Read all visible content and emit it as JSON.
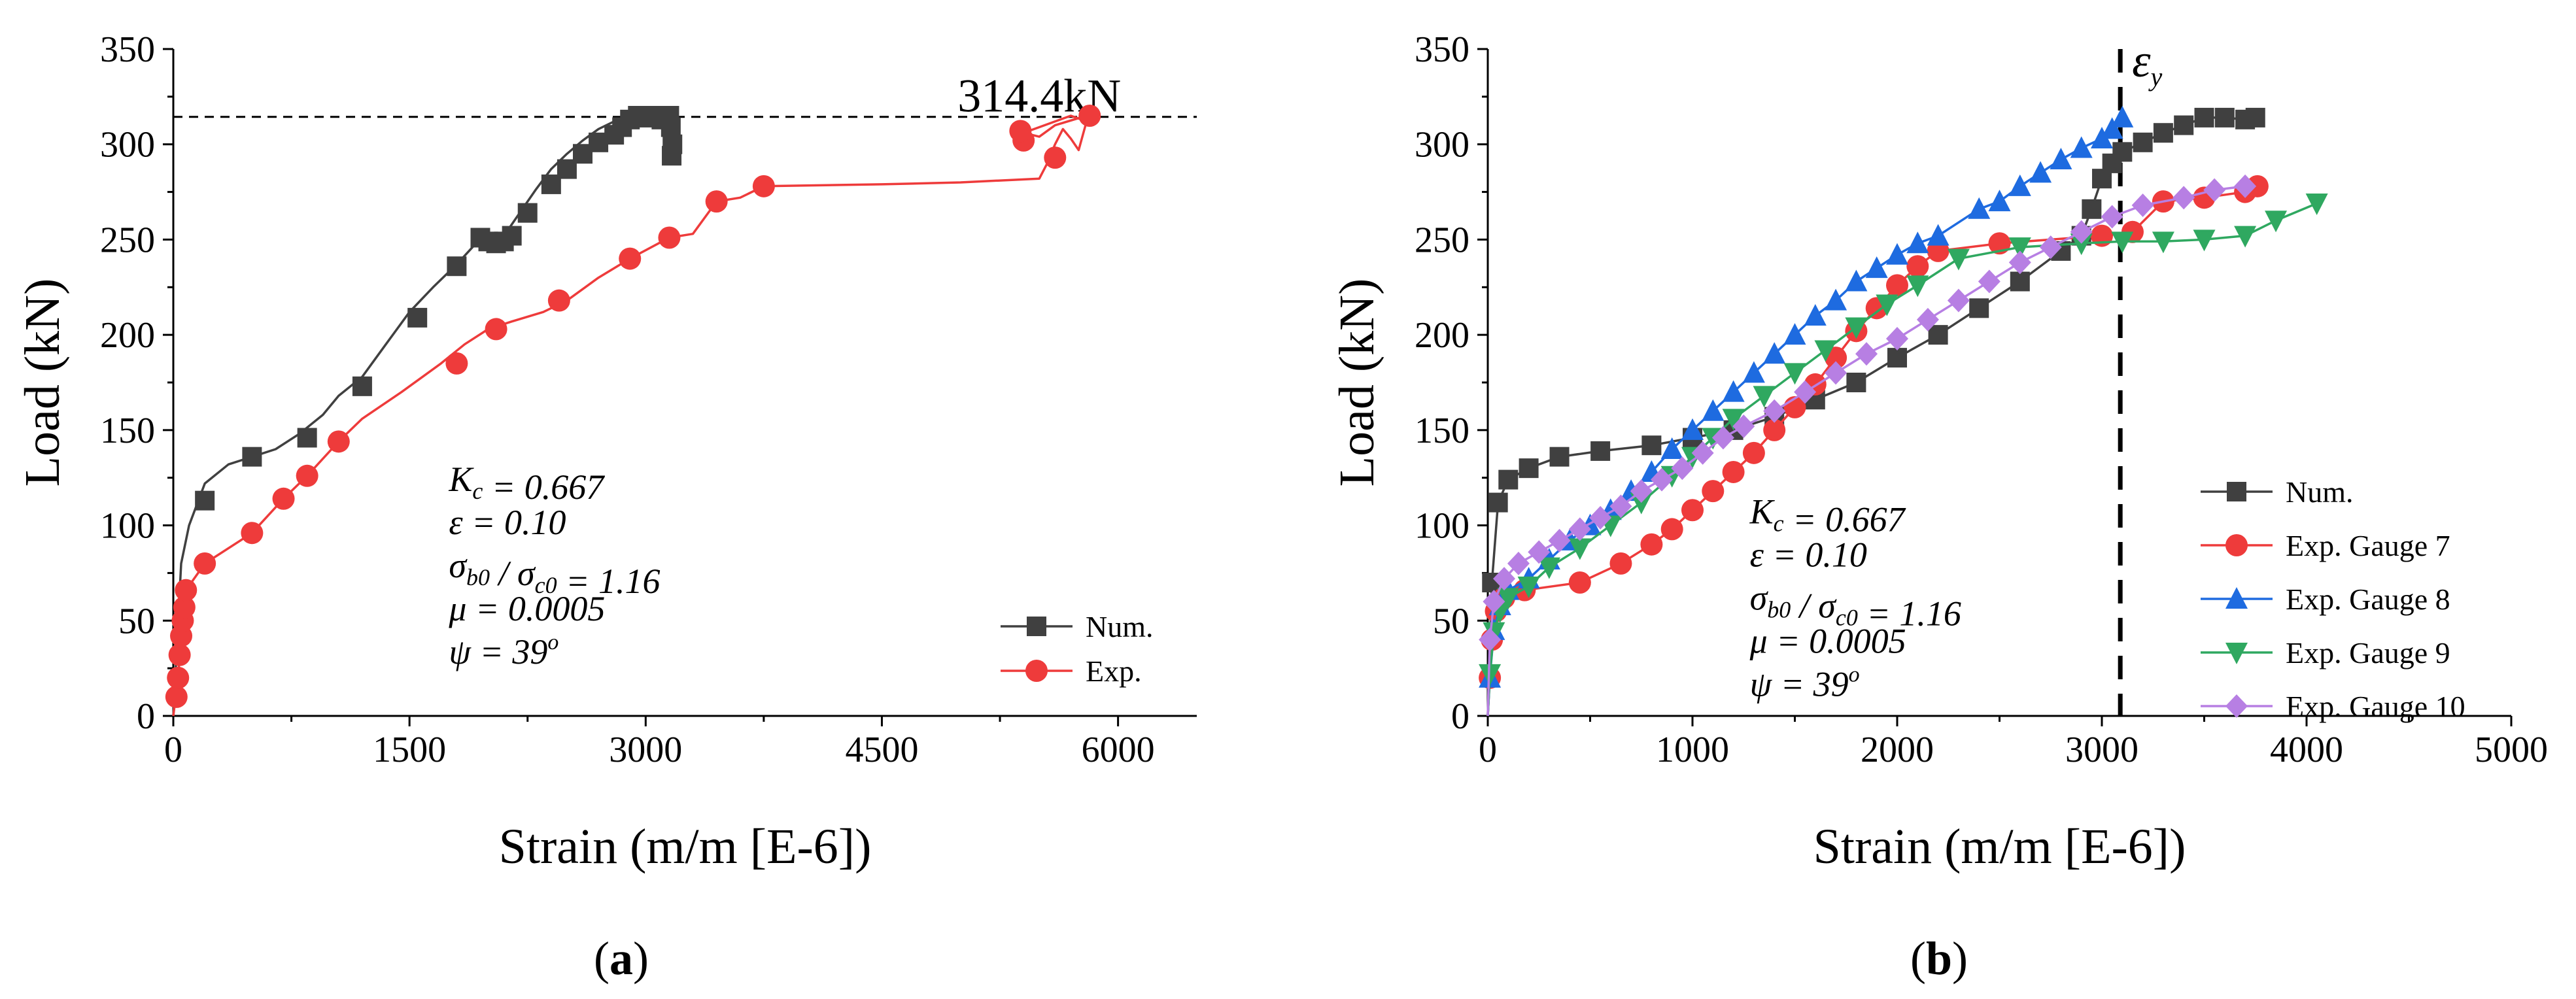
{
  "chart_data": [
    {
      "type": "line",
      "panel_label": "(a)",
      "xlabel": "Strain (m/m [E-6])",
      "ylabel": "Load (kN)",
      "xlim": [
        0,
        6500
      ],
      "ylim": [
        0,
        350
      ],
      "xticks": [
        0,
        1500,
        3000,
        4500,
        6000
      ],
      "yticks": [
        0,
        50,
        100,
        150,
        200,
        250,
        300,
        350
      ],
      "reference_line": {
        "y": 314.4,
        "style": "dashed",
        "label": "314.4kN"
      },
      "parameters": [
        "K_c = 0.667",
        "ε = 0.10",
        "σ_b0 / σ_c0 = 1.16",
        "μ = 0.0005",
        "ψ = 39°"
      ],
      "legend_position": "lower-right",
      "series": [
        {
          "name": "Num.",
          "color": "#404040",
          "marker": "square",
          "line_x": [
            0,
            50,
            100,
            200,
            350,
            500,
            650,
            800,
            950,
            1050,
            1200,
            1350,
            1500,
            1650,
            1800,
            1900,
            1960,
            2000,
            2050,
            2100,
            2200,
            2300,
            2400,
            2500,
            2600,
            2700,
            2800,
            2900,
            3000,
            3080,
            3150,
            3170,
            3160,
            3150,
            3140
          ],
          "line_y": [
            0,
            80,
            100,
            122,
            132,
            136,
            140,
            148,
            158,
            168,
            178,
            195,
            212,
            225,
            237,
            246,
            251,
            249,
            248,
            252,
            264,
            276,
            287,
            295,
            302,
            308,
            312,
            313,
            314,
            315,
            314,
            312,
            305,
            300,
            295
          ],
          "marker_x": [
            200,
            500,
            850,
            1200,
            1550,
            1800,
            1950,
            2000,
            2050,
            2100,
            2150,
            2250,
            2400,
            2500,
            2600,
            2700,
            2800,
            2850,
            2900,
            2950,
            3000,
            3050,
            3100,
            3150,
            3160,
            3170,
            3165
          ],
          "marker_y": [
            113,
            136,
            146,
            173,
            209,
            236,
            251,
            249,
            248,
            249,
            252,
            264,
            279,
            287,
            295,
            301,
            305,
            309,
            313,
            315,
            314,
            315,
            313,
            315,
            309,
            300,
            294
          ]
        },
        {
          "name": "Exp.",
          "color": "#ee3b3b",
          "marker": "circle",
          "line_x": [
            0,
            15,
            30,
            40,
            50,
            60,
            70,
            80,
            200,
            500,
            700,
            850,
            1050,
            1200,
            1450,
            1700,
            1850,
            2000,
            2150,
            2350,
            2500,
            2700,
            2900,
            3150,
            3300,
            3450,
            3600,
            3750,
            4500,
            5000,
            5500,
            5550,
            5600,
            5650,
            5700,
            5750,
            5800,
            5700,
            5500,
            5400,
            5500,
            5600,
            5800
          ],
          "line_y": [
            0,
            10,
            20,
            30,
            40,
            50,
            60,
            66,
            80,
            96,
            114,
            126,
            144,
            156,
            170,
            185,
            195,
            203,
            207,
            212,
            218,
            230,
            240,
            251,
            253,
            270,
            272,
            278,
            279,
            280,
            282,
            290,
            300,
            308,
            303,
            297,
            312,
            315,
            309,
            306,
            304,
            310,
            315
          ],
          "marker_x": [
            20,
            30,
            40,
            50,
            60,
            70,
            80,
            200,
            500,
            700,
            850,
            1050,
            1800,
            2050,
            2450,
            2900,
            3150,
            3450,
            3750,
            5400,
            5380,
            5600,
            5820
          ],
          "marker_y": [
            10,
            20,
            32,
            42,
            50,
            57,
            66,
            80,
            96,
            114,
            126,
            144,
            185,
            203,
            218,
            240,
            251,
            270,
            278,
            302,
            307,
            293,
            315
          ]
        }
      ]
    },
    {
      "type": "line",
      "panel_label": "(b)",
      "xlabel": "Strain (m/m [E-6])",
      "ylabel": "Load (kN)",
      "xlim": [
        0,
        5000
      ],
      "ylim": [
        0,
        350
      ],
      "xticks": [
        0,
        1000,
        2000,
        3000,
        4000,
        5000
      ],
      "yticks": [
        0,
        50,
        100,
        150,
        200,
        250,
        300,
        350
      ],
      "reference_line": {
        "x": 3090,
        "style": "dashed",
        "label": "ε_y"
      },
      "parameters": [
        "K_c = 0.667",
        "ε = 0.10",
        "σ_b0 / σ_c0 = 1.16",
        "μ = 0.0005",
        "ψ = 39°"
      ],
      "legend_position": "lower-right",
      "series": [
        {
          "name": "Num.",
          "color": "#404040",
          "marker": "square",
          "points_x": [
            0,
            20,
            50,
            100,
            200,
            350,
            550,
            800,
            1000,
            1200,
            1400,
            1600,
            1800,
            2000,
            2200,
            2400,
            2600,
            2800,
            2900,
            2950,
            3000,
            3050,
            3100,
            3200,
            3300,
            3400,
            3500,
            3600,
            3700,
            3750
          ],
          "points_y": [
            0,
            70,
            112,
            124,
            130,
            136,
            139,
            142,
            146,
            150,
            157,
            166,
            175,
            188,
            200,
            214,
            228,
            244,
            252,
            266,
            282,
            290,
            296,
            301,
            306,
            310,
            314,
            314,
            313,
            314
          ],
          "marker_step": 1
        },
        {
          "name": "Exp. Gauge 7",
          "color": "#ee3b3b",
          "marker": "circle",
          "points_x": [
            0,
            10,
            20,
            40,
            80,
            180,
            450,
            650,
            800,
            900,
            1000,
            1100,
            1200,
            1300,
            1400,
            1500,
            1600,
            1700,
            1800,
            1900,
            2000,
            2100,
            2200,
            2500,
            3000,
            3150,
            3300,
            3500,
            3700,
            3760
          ],
          "points_y": [
            0,
            20,
            40,
            55,
            62,
            66,
            70,
            80,
            90,
            98,
            108,
            118,
            128,
            138,
            150,
            162,
            174,
            188,
            202,
            214,
            226,
            236,
            244,
            248,
            252,
            254,
            270,
            272,
            275,
            278
          ],
          "marker_step": 1
        },
        {
          "name": "Exp. Gauge 8",
          "color": "#1e6be0",
          "marker": "triangle-up",
          "points_x": [
            0,
            10,
            30,
            60,
            100,
            200,
            300,
            400,
            500,
            600,
            700,
            800,
            900,
            1000,
            1100,
            1200,
            1300,
            1400,
            1500,
            1600,
            1700,
            1800,
            1900,
            2000,
            2100,
            2200,
            2400,
            2500,
            2600,
            2700,
            2800,
            2900,
            3000,
            3050,
            3100
          ],
          "points_y": [
            0,
            20,
            45,
            58,
            66,
            72,
            82,
            92,
            100,
            108,
            118,
            128,
            140,
            150,
            160,
            170,
            180,
            190,
            200,
            210,
            218,
            228,
            235,
            242,
            248,
            252,
            266,
            270,
            278,
            285,
            292,
            298,
            303,
            308,
            314
          ],
          "marker_step": 1
        },
        {
          "name": "Exp. Gauge 9",
          "color": "#2fa860",
          "marker": "triangle-down",
          "points_x": [
            0,
            10,
            30,
            60,
            100,
            200,
            300,
            450,
            600,
            750,
            900,
            1000,
            1100,
            1200,
            1350,
            1500,
            1650,
            1800,
            1950,
            2100,
            2300,
            2600,
            2900,
            3100,
            3300,
            3500,
            3700,
            3850,
            4050
          ],
          "points_y": [
            0,
            22,
            44,
            55,
            62,
            68,
            78,
            88,
            100,
            112,
            126,
            136,
            146,
            156,
            168,
            180,
            192,
            204,
            216,
            226,
            240,
            246,
            248,
            249,
            249,
            250,
            252,
            260,
            269
          ],
          "marker_step": 1
        },
        {
          "name": "Exp. Gauge 10",
          "color": "#b77fe3",
          "marker": "diamond",
          "points_x": [
            0,
            10,
            30,
            80,
            150,
            250,
            350,
            450,
            550,
            650,
            750,
            850,
            950,
            1050,
            1150,
            1250,
            1400,
            1550,
            1700,
            1850,
            2000,
            2150,
            2300,
            2450,
            2600,
            2750,
            2900,
            3050,
            3200,
            3400,
            3550,
            3700
          ],
          "points_y": [
            0,
            40,
            60,
            72,
            80,
            86,
            92,
            98,
            104,
            110,
            118,
            124,
            130,
            138,
            146,
            152,
            160,
            170,
            180,
            190,
            198,
            208,
            218,
            228,
            238,
            246,
            254,
            262,
            268,
            272,
            276,
            278
          ],
          "marker_step": 1
        }
      ]
    }
  ]
}
